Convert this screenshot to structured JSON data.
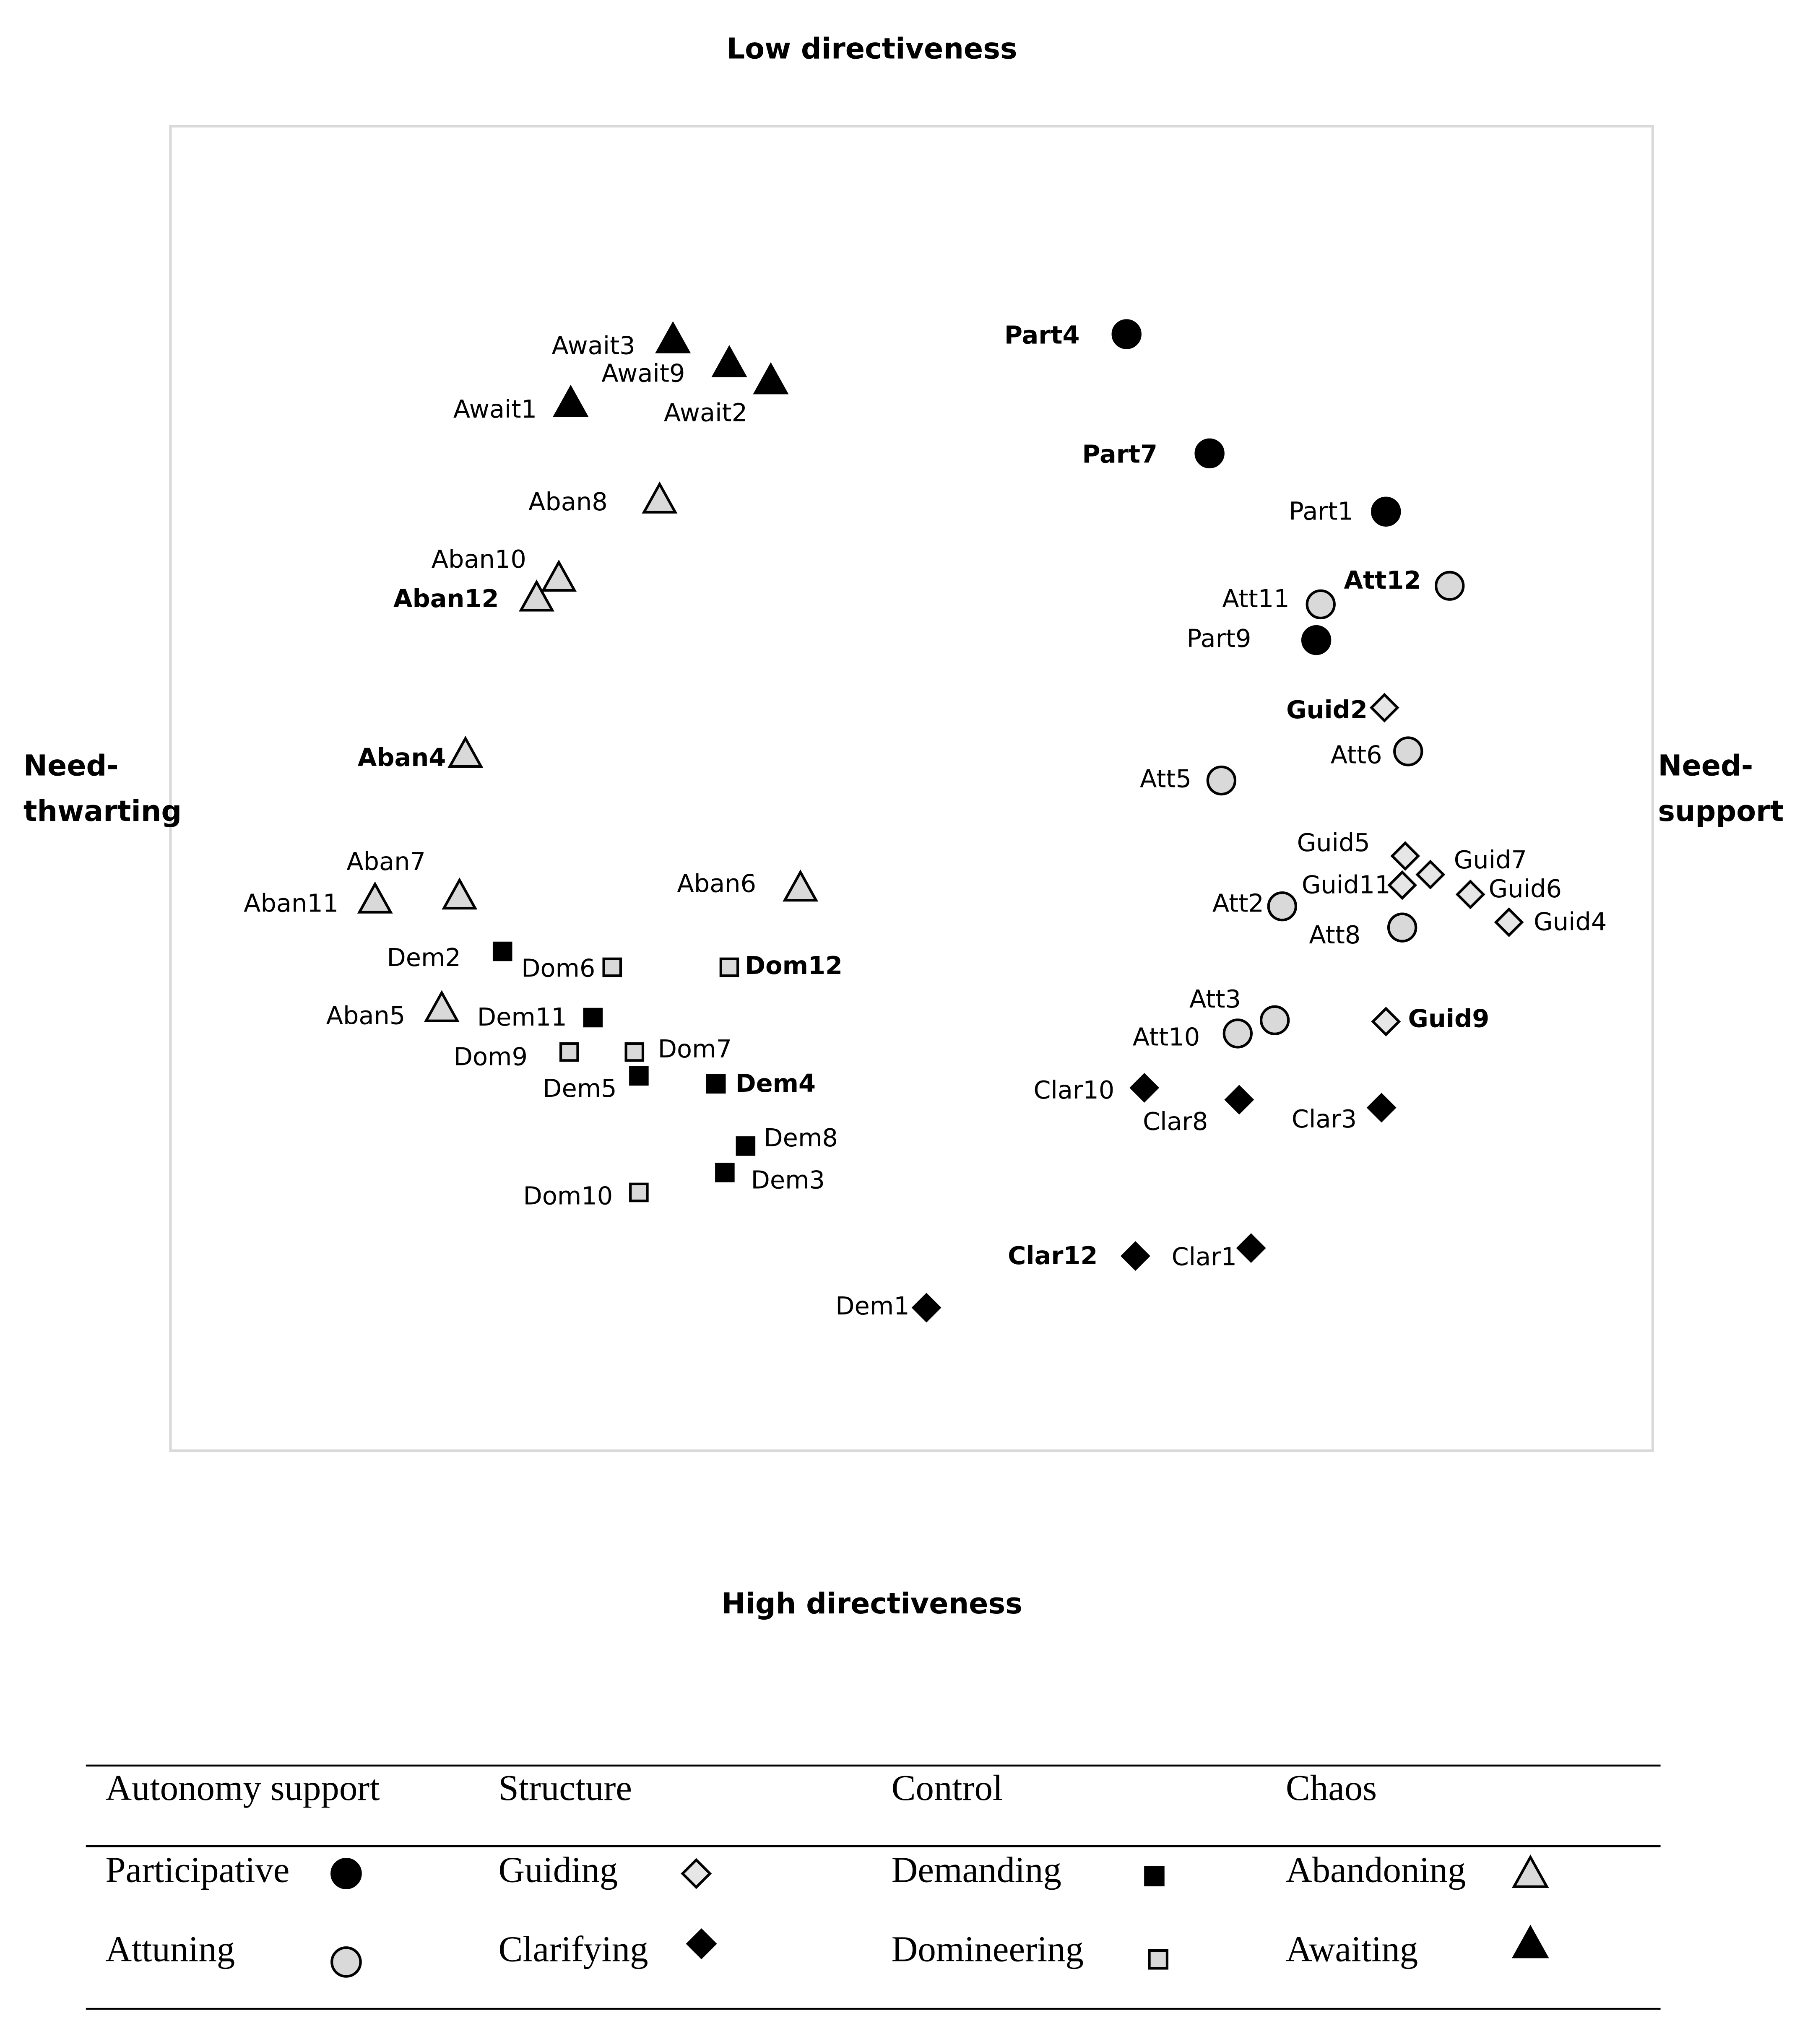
{
  "chart_data": {
    "type": "scatter",
    "top_label": "Low directiveness",
    "bottom_label": "High directiveness",
    "left_label": [
      "Need-",
      "thwarting"
    ],
    "right_label": [
      "Need-",
      "support"
    ],
    "xlim": [
      0,
      100
    ],
    "ylim": [
      0,
      100
    ],
    "groups": [
      {
        "name": "Autonomy support",
        "series": [
          {
            "name": "Participative",
            "marker": "circle",
            "color": "#000000",
            "labels": [
              "Part4",
              "Part7",
              "Part1",
              "Part9"
            ],
            "bold": [
              true,
              true,
              false,
              false
            ],
            "x": [
              64.5,
              70.1,
              82.0,
              77.3
            ],
            "y": [
              84.3,
              75.3,
              70.9,
              61.2
            ]
          },
          {
            "name": "Attuning",
            "marker": "circle",
            "color": "#d9d9d9",
            "labels": [
              "Att12",
              "Att11",
              "Att6",
              "Att5",
              "Att2",
              "Att8",
              "Att3",
              "Att10"
            ],
            "bold": [
              true,
              false,
              false,
              false,
              false,
              false,
              false,
              false
            ],
            "x": [
              86.3,
              77.6,
              83.5,
              70.9,
              75.0,
              83.1,
              74.5,
              72.0
            ],
            "y": [
              65.3,
              63.9,
              52.8,
              50.6,
              41.1,
              39.5,
              32.5,
              31.5
            ]
          }
        ]
      },
      {
        "name": "Structure",
        "series": [
          {
            "name": "Guiding",
            "marker": "diamond",
            "color": "#e6e6e6",
            "labels": [
              "Guid2",
              "Guid5",
              "Guid7",
              "Guid11",
              "Guid6",
              "Guid4",
              "Guid9"
            ],
            "bold": [
              true,
              false,
              false,
              false,
              false,
              false,
              true
            ],
            "x": [
              81.9,
              83.3,
              85.0,
              83.1,
              87.7,
              90.3,
              82.0
            ],
            "y": [
              56.1,
              44.9,
              43.5,
              42.7,
              42.0,
              39.9,
              32.4
            ]
          },
          {
            "name": "Clarifying",
            "marker": "diamond",
            "color": "#000000",
            "labels": [
              "Clar10",
              "Clar8",
              "Clar3",
              "Clar12",
              "Clar1",
              "Dem1"
            ],
            "bold": [
              false,
              false,
              false,
              true,
              false,
              false
            ],
            "x": [
              65.7,
              72.1,
              81.7,
              65.1,
              72.9,
              51.0
            ],
            "y": [
              27.4,
              26.5,
              25.9,
              14.7,
              15.3,
              10.8
            ]
          }
        ]
      },
      {
        "name": "Control",
        "series": [
          {
            "name": "Demanding",
            "marker": "square",
            "color": "#000000",
            "labels": [
              "Dem2",
              "Dem11",
              "Dem5",
              "Dem4",
              "Dem8",
              "Dem3"
            ],
            "bold": [
              false,
              false,
              false,
              true,
              false,
              false
            ],
            "x": [
              22.4,
              28.5,
              31.6,
              36.8,
              38.8,
              37.4
            ],
            "y": [
              37.7,
              32.7,
              28.3,
              27.7,
              23.0,
              21.0
            ]
          },
          {
            "name": "Domineering",
            "marker": "square",
            "color": "#d9d9d9",
            "labels": [
              "Dom6",
              "Dom12",
              "Dom9",
              "Dom7",
              "Dom10"
            ],
            "bold": [
              false,
              true,
              false,
              false,
              false
            ],
            "x": [
              29.8,
              37.7,
              26.9,
              31.3,
              31.6
            ],
            "y": [
              36.5,
              36.5,
              30.1,
              30.1,
              19.5
            ]
          }
        ]
      },
      {
        "name": "Chaos",
        "series": [
          {
            "name": "Abandoning",
            "marker": "triangle",
            "color": "#d9d9d9",
            "labels": [
              "Aban8",
              "Aban10",
              "Aban12",
              "Aban4",
              "Aban7",
              "Aban11",
              "Aban6",
              "Aban5"
            ],
            "bold": [
              false,
              false,
              true,
              true,
              false,
              false,
              false,
              false
            ],
            "x": [
              33.0,
              26.2,
              24.7,
              19.9,
              19.5,
              13.8,
              42.5,
              18.3
            ],
            "y": [
              71.8,
              65.9,
              64.4,
              52.6,
              41.9,
              41.6,
              42.5,
              33.4
            ]
          },
          {
            "name": "Awaiting",
            "marker": "triangle",
            "color": "#000000",
            "labels": [
              "Await3",
              "Await9",
              "Await2",
              "Await1"
            ],
            "bold": [
              false,
              false,
              false,
              false
            ],
            "x": [
              33.9,
              37.7,
              40.5,
              27.0
            ],
            "y": [
              83.9,
              82.1,
              80.8,
              79.1
            ]
          }
        ]
      }
    ]
  }
}
